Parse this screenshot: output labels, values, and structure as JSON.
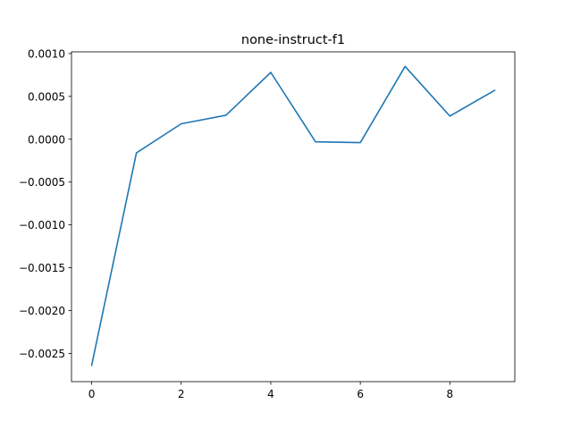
{
  "chart_data": {
    "type": "line",
    "title": "none-instruct-f1",
    "xlabel": "",
    "ylabel": "",
    "xlim": [
      -0.45,
      9.45
    ],
    "ylim": [
      -0.00283,
      0.00102
    ],
    "x_ticks": [
      0,
      2,
      4,
      6,
      8
    ],
    "x_tick_labels": [
      "0",
      "2",
      "4",
      "6",
      "8"
    ],
    "y_ticks": [
      0.001,
      0.0005,
      0.0,
      -0.0005,
      -0.001,
      -0.0015,
      -0.002,
      -0.0025
    ],
    "y_tick_labels": [
      "0.0010",
      "0.0005",
      "0.0000",
      "−0.0005",
      "−0.0010",
      "−0.0015",
      "−0.0020",
      "−0.0025"
    ],
    "grid": false,
    "legend": "none",
    "series": [
      {
        "color": "#1f77b4",
        "x": [
          0,
          1,
          2,
          3,
          4,
          5,
          6,
          7,
          8,
          9
        ],
        "y": [
          -0.00264,
          -0.00016,
          0.00018,
          0.00028,
          0.00078,
          -3e-05,
          -4e-05,
          0.00085,
          0.00027,
          0.00057
        ]
      }
    ]
  }
}
